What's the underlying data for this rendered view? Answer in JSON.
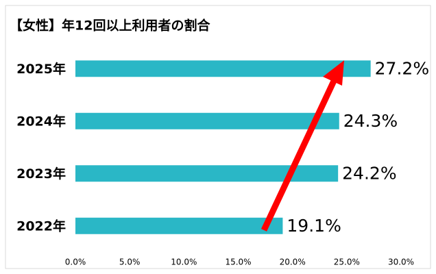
{
  "chart_data": {
    "type": "barh",
    "title": "【女性】年12回以上利用者の割合",
    "categories": [
      "2025年",
      "2024年",
      "2023年",
      "2022年"
    ],
    "values": [
      27.2,
      24.3,
      24.2,
      19.1
    ],
    "value_labels": [
      "27.2%",
      "24.3%",
      "24.2%",
      "19.1%"
    ],
    "color": "#2ab7c6",
    "xlim": [
      0,
      30
    ],
    "xticks": [
      {
        "value": 0,
        "label": "0.0%"
      },
      {
        "value": 5,
        "label": "5.0%"
      },
      {
        "value": 10,
        "label": "10.0%"
      },
      {
        "value": 15,
        "label": "15.0%"
      },
      {
        "value": 20,
        "label": "20.0%"
      },
      {
        "value": 25,
        "label": "25.0%"
      },
      {
        "value": 30,
        "label": "30.0%"
      }
    ],
    "grid": false
  }
}
